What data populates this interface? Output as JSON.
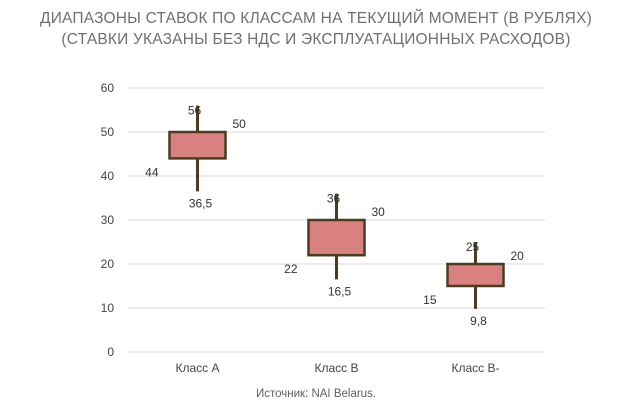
{
  "title_line1": "ДИАПАЗОНЫ СТАВОК ПО КЛАССАМ НА ТЕКУЩИЙ МОМЕНТ (В РУБЛЯХ)",
  "title_line2": "(СТАВКИ УКАЗАНЫ БЕЗ НДС И ЭКСПЛУАТАЦИОННЫХ РАСХОДОВ)",
  "source": "Источник: NAI Belarus.",
  "chart_data": {
    "type": "candlestick",
    "categories": [
      "Класс A",
      "Класс B",
      "Класс B-"
    ],
    "ylim": [
      0,
      60
    ],
    "yticks": [
      0,
      10,
      20,
      30,
      40,
      50,
      60
    ],
    "grid": true,
    "box_color": "#d98080",
    "edge_color": "#4a3b22",
    "series": [
      {
        "low": 36.5,
        "low_label": "36,5",
        "box_low": 44,
        "box_low_label": "44",
        "box_high": 50,
        "box_high_label": "50",
        "high": 56,
        "high_label": "56"
      },
      {
        "low": 16.5,
        "low_label": "16,5",
        "box_low": 22,
        "box_low_label": "22",
        "box_high": 30,
        "box_high_label": "30",
        "high": 36,
        "high_label": "36"
      },
      {
        "low": 9.8,
        "low_label": "9,8",
        "box_low": 15,
        "box_low_label": "15",
        "box_high": 20,
        "box_high_label": "20",
        "high": 25,
        "high_label": "25"
      }
    ]
  }
}
